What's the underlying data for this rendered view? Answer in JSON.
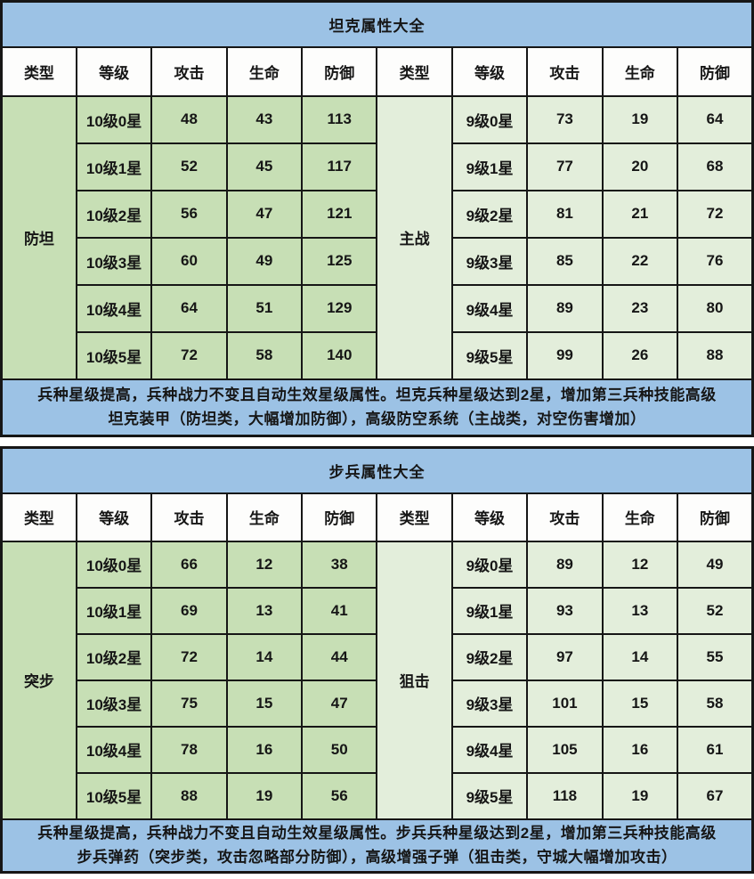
{
  "colors": {
    "title_bg": "#9CC2E5",
    "note_bg": "#9CC2E5",
    "note_text": "#FB0406",
    "left_half_green": "#C7DFB5",
    "right_half_green": "#E3EEDB",
    "header_bg": "#FDFDFC",
    "border": "#161616",
    "cell_text": "#161616"
  },
  "tables": [
    {
      "title": "坦克属性大全",
      "headers": [
        "类型",
        "等级",
        "攻击",
        "生命",
        "防御",
        "类型",
        "等级",
        "攻击",
        "生命",
        "防御"
      ],
      "left": {
        "type": "防坦",
        "rows": [
          [
            "10级0星",
            "48",
            "43",
            "113"
          ],
          [
            "10级1星",
            "52",
            "45",
            "117"
          ],
          [
            "10级2星",
            "56",
            "47",
            "121"
          ],
          [
            "10级3星",
            "60",
            "49",
            "125"
          ],
          [
            "10级4星",
            "64",
            "51",
            "129"
          ],
          [
            "10级5星",
            "72",
            "58",
            "140"
          ]
        ]
      },
      "right": {
        "type": "主战",
        "rows": [
          [
            "9级0星",
            "73",
            "19",
            "64"
          ],
          [
            "9级1星",
            "77",
            "20",
            "68"
          ],
          [
            "9级2星",
            "81",
            "21",
            "72"
          ],
          [
            "9级3星",
            "85",
            "22",
            "76"
          ],
          [
            "9级4星",
            "89",
            "23",
            "80"
          ],
          [
            "9级5星",
            "99",
            "26",
            "88"
          ]
        ]
      },
      "note": {
        "line1": "兵种星级提高，兵种战力不变且自动生效星级属性。坦克兵种星级达到2星，增加第三兵种技能高级",
        "line2": "坦克装甲（防坦类，大幅增加防御），高级防空系统（主战类，对空伤害增加）"
      }
    },
    {
      "title": "步兵属性大全",
      "headers": [
        "类型",
        "等级",
        "攻击",
        "生命",
        "防御",
        "类型",
        "等级",
        "攻击",
        "生命",
        "防御"
      ],
      "left": {
        "type": "突步",
        "rows": [
          [
            "10级0星",
            "66",
            "12",
            "38"
          ],
          [
            "10级1星",
            "69",
            "13",
            "41"
          ],
          [
            "10级2星",
            "72",
            "14",
            "44"
          ],
          [
            "10级3星",
            "75",
            "15",
            "47"
          ],
          [
            "10级4星",
            "78",
            "16",
            "50"
          ],
          [
            "10级5星",
            "88",
            "19",
            "56"
          ]
        ]
      },
      "right": {
        "type": "狙击",
        "rows": [
          [
            "9级0星",
            "89",
            "12",
            "49"
          ],
          [
            "9级1星",
            "93",
            "13",
            "52"
          ],
          [
            "9级2星",
            "97",
            "14",
            "55"
          ],
          [
            "9级3星",
            "101",
            "15",
            "58"
          ],
          [
            "9级4星",
            "105",
            "16",
            "61"
          ],
          [
            "9级5星",
            "118",
            "19",
            "67"
          ]
        ]
      },
      "note": {
        "line1": "兵种星级提高，兵种战力不变且自动生效星级属性。步兵兵种星级达到2星，增加第三兵种技能高级",
        "line2": "步兵弹药（突步类，攻击忽略部分防御），高级增强子弹（狙击类，守城大幅增加攻击）"
      }
    }
  ]
}
